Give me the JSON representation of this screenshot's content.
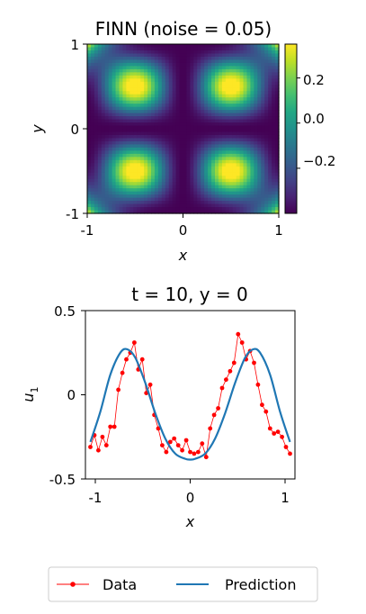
{
  "chart_data": [
    {
      "type": "heatmap",
      "title": "FINN (noise = 0.05)",
      "xlabel": "x",
      "ylabel": "y",
      "xlim": [
        -1,
        1
      ],
      "ylim": [
        -1,
        1
      ],
      "xticks": [
        "-1",
        "0",
        "1"
      ],
      "yticks": [
        "1",
        "0",
        "-1"
      ],
      "colormap": "viridis",
      "colorbar": {
        "range": [
          -0.4,
          0.35
        ],
        "ticks": [
          "0.2",
          "0.0",
          "−0.2"
        ]
      }
    },
    {
      "type": "line",
      "title": "t = 10, y = 0",
      "xlabel": "x",
      "ylabel": "u",
      "ylabel_subscript": "1",
      "xlim": [
        -1.05,
        1.05
      ],
      "ylim": [
        -0.5,
        0.5
      ],
      "xticks": [
        "-1",
        "0",
        "1"
      ],
      "yticks": [
        "0.5",
        "0",
        "-0.5"
      ],
      "grid": false,
      "legend_position": "bottom-center",
      "series": [
        {
          "name": "Data",
          "color": "#ff0000",
          "marker": "dot",
          "x": [
            -1.0,
            -0.96,
            -0.92,
            -0.88,
            -0.84,
            -0.8,
            -0.76,
            -0.72,
            -0.68,
            -0.64,
            -0.6,
            -0.56,
            -0.52,
            -0.48,
            -0.44,
            -0.4,
            -0.36,
            -0.32,
            -0.28,
            -0.24,
            -0.2,
            -0.16,
            -0.12,
            -0.08,
            -0.04,
            0.0,
            0.04,
            0.08,
            0.12,
            0.16,
            0.2,
            0.24,
            0.28,
            0.32,
            0.36,
            0.4,
            0.44,
            0.48,
            0.52,
            0.56,
            0.6,
            0.64,
            0.68,
            0.72,
            0.76,
            0.8,
            0.84,
            0.88,
            0.92,
            0.96,
            1.0
          ],
          "y": [
            -0.31,
            -0.24,
            -0.33,
            -0.25,
            -0.3,
            -0.19,
            -0.19,
            0.03,
            0.13,
            0.21,
            0.25,
            0.31,
            0.15,
            0.21,
            0.01,
            0.06,
            -0.12,
            -0.2,
            -0.3,
            -0.34,
            -0.28,
            -0.26,
            -0.3,
            -0.33,
            -0.27,
            -0.34,
            -0.35,
            -0.34,
            -0.29,
            -0.37,
            -0.2,
            -0.12,
            -0.08,
            0.04,
            0.09,
            0.14,
            0.19,
            0.36,
            0.31,
            0.21,
            0.26,
            0.19,
            0.06,
            -0.06,
            -0.1,
            -0.2,
            -0.23,
            -0.22,
            -0.25,
            -0.31,
            -0.35
          ]
        },
        {
          "name": "Prediction",
          "color": "#1f77b4",
          "marker": "none",
          "x": [
            -1.0,
            -0.9,
            -0.8,
            -0.7,
            -0.63,
            -0.55,
            -0.45,
            -0.35,
            -0.25,
            -0.15,
            -0.05,
            0.0,
            0.05,
            0.15,
            0.25,
            0.35,
            0.45,
            0.55,
            0.63,
            0.7,
            0.8,
            0.9,
            1.0
          ],
          "y": [
            -0.28,
            -0.1,
            0.12,
            0.25,
            0.27,
            0.22,
            0.07,
            -0.11,
            -0.26,
            -0.35,
            -0.38,
            -0.385,
            -0.38,
            -0.35,
            -0.26,
            -0.11,
            0.07,
            0.22,
            0.27,
            0.25,
            0.12,
            -0.1,
            -0.28
          ]
        }
      ]
    }
  ]
}
